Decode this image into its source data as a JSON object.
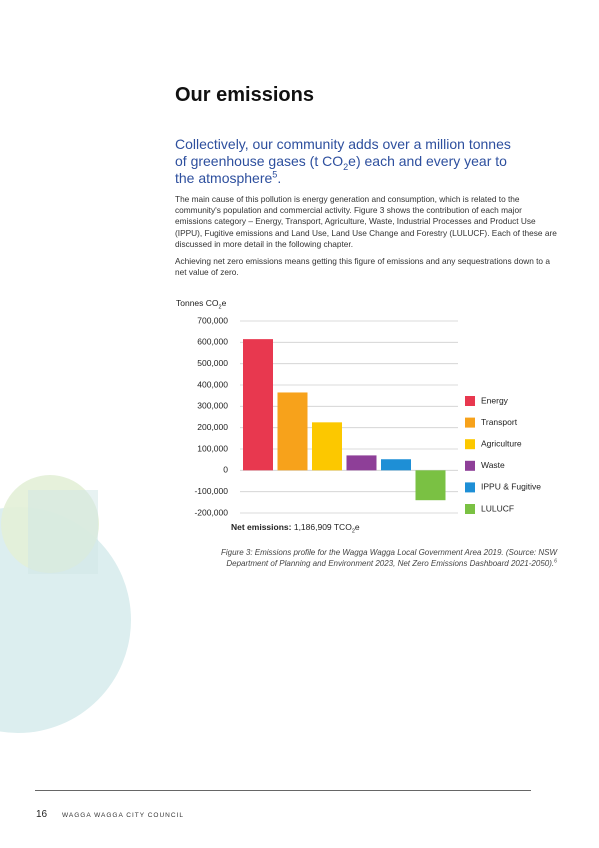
{
  "heading": "Our emissions",
  "lead": [
    "Collectively, our community adds over a million tonnes of greenhouse gases (t CO",
    "2",
    "e) each and every year to the atmosphere",
    "5",
    "."
  ],
  "paragraphs": [
    "The main cause of this pollution is energy generation and consumption, which is related to the community's population and commercial activity. Figure 3 shows the contribution of each major emissions category – Energy, Transport, Agriculture, Waste, Industrial Processes and Product Use (IPPU), Fugitive emissions and Land Use, Land Use Change and Forestry (LULUCF). Each of these are discussed in more detail in the following chapter.",
    "Achieving net zero emissions means getting this figure of emissions and any sequestrations down to a net value of zero."
  ],
  "chart_data": {
    "type": "bar",
    "y_label": [
      "Tonnes CO",
      "2",
      "e"
    ],
    "categories": [
      "Energy",
      "Transport",
      "Agriculture",
      "Waste",
      "IPPU & Fugitive",
      "LULUCF"
    ],
    "values": [
      615000,
      365000,
      225000,
      70000,
      52000,
      -140000
    ],
    "colors": [
      "#e8384f",
      "#f7a21b",
      "#fcc800",
      "#8e3f98",
      "#1e8fd6",
      "#7ac143"
    ],
    "ylim": [
      -200000,
      700000
    ],
    "yticks": [
      {
        "value": -200000,
        "label": "-200,000"
      },
      {
        "value": -100000,
        "label": "-100,000"
      },
      0,
      {
        "value": 100000,
        "label": "100,000"
      },
      {
        "value": 200000,
        "label": "200,000"
      },
      {
        "value": 300000,
        "label": "300,000"
      },
      {
        "value": 400000,
        "label": "400,000"
      },
      {
        "value": 500000,
        "label": "500,000"
      },
      {
        "value": 600000,
        "label": "600,000"
      },
      {
        "value": 700000,
        "label": "700,000"
      }
    ],
    "grid": true,
    "legend": "right",
    "net_label": "Net emissions:",
    "net_value": [
      "1,186,909 TCO",
      "2",
      "e"
    ]
  },
  "caption": [
    "Figure 3: Emissions profile for the Wagga Wagga Local Government Area 2019. (Source: NSW Department of Planning and Environment 2023, Net Zero Emissions Dashboard 2021-2050).",
    "6"
  ],
  "footer": {
    "page": "16",
    "text": "WAGGA WAGGA CITY COUNCIL"
  }
}
